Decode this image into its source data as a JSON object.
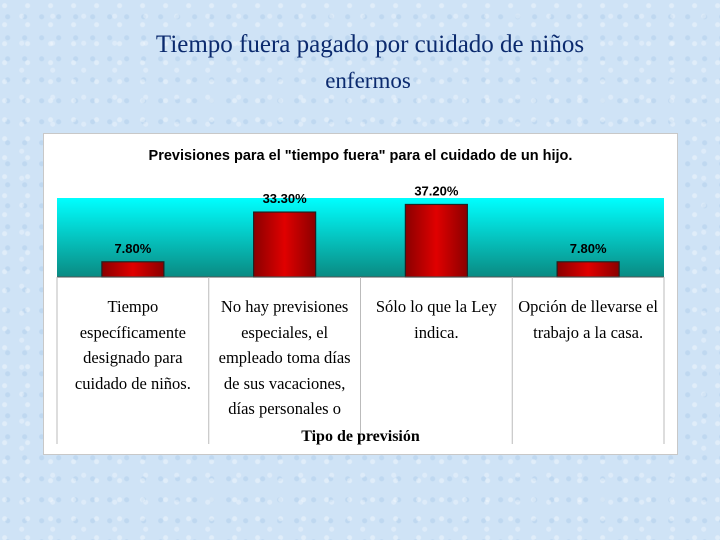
{
  "slide": {
    "title_line1": "Tiempo fuera pagado por cuidado de niños",
    "title_line2": "enfermos"
  },
  "colors": {
    "plot_top": "#00ffff",
    "plot_bottom": "#0a8a82",
    "bar": "#e00000",
    "bar_dark": "#8a0000"
  },
  "chart_data": {
    "type": "bar",
    "title": "Previsiones para el \"tiempo fuera\" para el cuidado de un hijo.",
    "xlabel": "Tipo de previsión",
    "ylabel": "",
    "categories": [
      "Tiempo específicamente designado para cuidado de niños.",
      "No hay previsiones especiales, el empleado toma días de sus vacaciones, días personales o",
      "Sólo lo que la Ley indica.",
      "Opción de llevarse el trabajo a la casa."
    ],
    "values": [
      7.8,
      33.3,
      37.2,
      7.8
    ],
    "data_labels": [
      "7.80%",
      "33.30%",
      "37.20%",
      "7.80%"
    ],
    "ylim": [
      0,
      40
    ],
    "grid": false,
    "legend": "none"
  }
}
